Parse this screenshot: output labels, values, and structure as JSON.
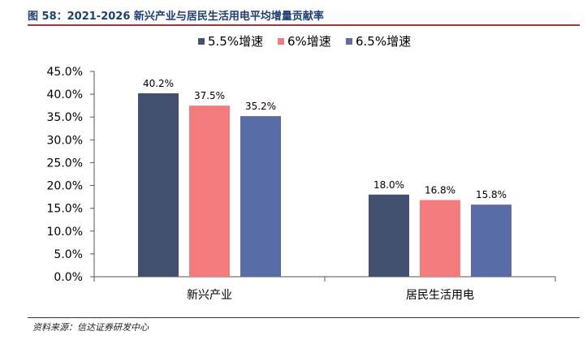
{
  "header": {
    "title": "图 58：2021-2026 新兴产业与居民生活用电平均增量贡献率"
  },
  "footer": {
    "source": "资料来源：信达证券研发中心"
  },
  "chart_data": {
    "type": "bar",
    "title": "",
    "xlabel": "",
    "ylabel": "",
    "categories": [
      "新兴产业",
      "居民生活用电"
    ],
    "series": [
      {
        "name": "5.5%增速",
        "values": [
          40.2,
          18.0
        ],
        "labels": [
          "40.2%",
          "18.0%"
        ],
        "color": "#44506f"
      },
      {
        "name": "6%增速",
        "values": [
          37.5,
          16.8
        ],
        "labels": [
          "37.5%",
          "16.8%"
        ],
        "color": "#f47b7b"
      },
      {
        "name": "6.5%增速",
        "values": [
          35.2,
          15.8
        ],
        "labels": [
          "35.2%",
          "15.8%"
        ],
        "color": "#5a6ca6"
      }
    ],
    "ylim": [
      0,
      45
    ],
    "yticks": [
      0,
      5,
      10,
      15,
      20,
      25,
      30,
      35,
      40,
      45
    ],
    "ytick_labels": [
      "0.0%",
      "5.0%",
      "10.0%",
      "15.0%",
      "20.0%",
      "25.0%",
      "30.0%",
      "35.0%",
      "40.0%",
      "45.0%"
    ],
    "grid": false,
    "legend_position": "top-center"
  }
}
